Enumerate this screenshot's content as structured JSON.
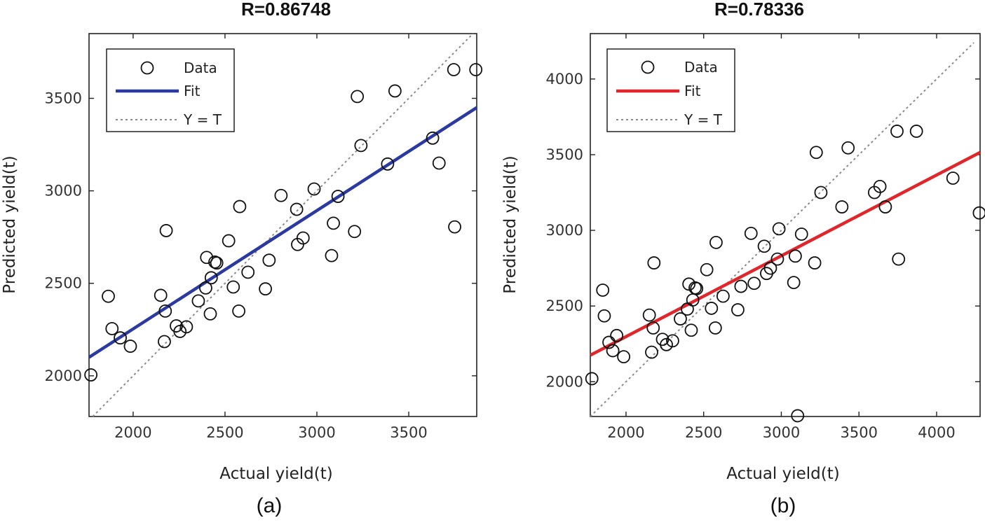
{
  "chart_data": [
    {
      "type": "scatter",
      "panel_label": "(a)",
      "title": "R=0.86748",
      "xlabel": "Actual yield(t)",
      "ylabel": "Predicted yield(t)",
      "xlim": [
        1760,
        3870
      ],
      "ylim": [
        1780,
        3850
      ],
      "xticks": [
        2000,
        2500,
        3000,
        3500
      ],
      "yticks": [
        2000,
        2500,
        3000,
        3500
      ],
      "xtick_labels": [
        "2000",
        "2500",
        "3000",
        "3500"
      ],
      "ytick_labels": [
        "2000",
        "2500",
        "3000",
        "3500"
      ],
      "legend": {
        "position": "top-left",
        "entries": [
          "Data",
          "Fit",
          "Y = T"
        ]
      },
      "fit_color": "#2b3aa0",
      "fit": {
        "x": [
          1760,
          3870
        ],
        "y": [
          2100,
          3450
        ]
      },
      "identity": {
        "x": [
          1780,
          3850
        ],
        "y": [
          1780,
          3850
        ]
      },
      "points": [
        {
          "x": 1770,
          "y": 2005
        },
        {
          "x": 1865,
          "y": 2430
        },
        {
          "x": 1885,
          "y": 2255
        },
        {
          "x": 1930,
          "y": 2205
        },
        {
          "x": 1985,
          "y": 2160
        },
        {
          "x": 2150,
          "y": 2435
        },
        {
          "x": 2170,
          "y": 2185
        },
        {
          "x": 2175,
          "y": 2350
        },
        {
          "x": 2180,
          "y": 2785
        },
        {
          "x": 2235,
          "y": 2270
        },
        {
          "x": 2255,
          "y": 2240
        },
        {
          "x": 2290,
          "y": 2265
        },
        {
          "x": 2355,
          "y": 2405
        },
        {
          "x": 2395,
          "y": 2475
        },
        {
          "x": 2400,
          "y": 2640
        },
        {
          "x": 2420,
          "y": 2335
        },
        {
          "x": 2425,
          "y": 2530
        },
        {
          "x": 2445,
          "y": 2615
        },
        {
          "x": 2455,
          "y": 2610
        },
        {
          "x": 2520,
          "y": 2730
        },
        {
          "x": 2545,
          "y": 2480
        },
        {
          "x": 2575,
          "y": 2350
        },
        {
          "x": 2580,
          "y": 2915
        },
        {
          "x": 2625,
          "y": 2560
        },
        {
          "x": 2720,
          "y": 2470
        },
        {
          "x": 2740,
          "y": 2625
        },
        {
          "x": 2805,
          "y": 2975
        },
        {
          "x": 2890,
          "y": 2900
        },
        {
          "x": 2895,
          "y": 2710
        },
        {
          "x": 2925,
          "y": 2745
        },
        {
          "x": 2985,
          "y": 3010
        },
        {
          "x": 3080,
          "y": 2650
        },
        {
          "x": 3090,
          "y": 2825
        },
        {
          "x": 3115,
          "y": 2970
        },
        {
          "x": 3205,
          "y": 2780
        },
        {
          "x": 3220,
          "y": 3510
        },
        {
          "x": 3240,
          "y": 3245
        },
        {
          "x": 3385,
          "y": 3145
        },
        {
          "x": 3425,
          "y": 3540
        },
        {
          "x": 3630,
          "y": 3285
        },
        {
          "x": 3665,
          "y": 3150
        },
        {
          "x": 3745,
          "y": 3655
        },
        {
          "x": 3750,
          "y": 2805
        },
        {
          "x": 3865,
          "y": 3655
        }
      ]
    },
    {
      "type": "scatter",
      "panel_label": "(b)",
      "title": "R=0.78336",
      "xlabel": "Actual yield(t)",
      "ylabel": "Predicted yield(t)",
      "xlim": [
        1770,
        4280
      ],
      "ylim": [
        1770,
        4300
      ],
      "xticks": [
        2000,
        2500,
        3000,
        3500,
        4000
      ],
      "yticks": [
        2000,
        2500,
        3000,
        3500,
        4000
      ],
      "xtick_labels": [
        "2000",
        "2500",
        "3000",
        "3500",
        "4000"
      ],
      "ytick_labels": [
        "2000",
        "2500",
        "3000",
        "3500",
        "4000"
      ],
      "legend": {
        "position": "top-left",
        "entries": [
          "Data",
          "Fit",
          "Y = T"
        ]
      },
      "fit_color": "#e0262a",
      "fit": {
        "x": [
          1770,
          4280
        ],
        "y": [
          2175,
          3515
        ]
      },
      "identity": {
        "x": [
          1770,
          4240
        ],
        "y": [
          1770,
          4240
        ]
      },
      "points": [
        {
          "x": 1780,
          "y": 2020
        },
        {
          "x": 1850,
          "y": 2605
        },
        {
          "x": 1860,
          "y": 2435
        },
        {
          "x": 1890,
          "y": 2260
        },
        {
          "x": 1915,
          "y": 2205
        },
        {
          "x": 1940,
          "y": 2305
        },
        {
          "x": 1985,
          "y": 2165
        },
        {
          "x": 2150,
          "y": 2440
        },
        {
          "x": 2165,
          "y": 2195
        },
        {
          "x": 2175,
          "y": 2355
        },
        {
          "x": 2180,
          "y": 2785
        },
        {
          "x": 2235,
          "y": 2280
        },
        {
          "x": 2260,
          "y": 2245
        },
        {
          "x": 2300,
          "y": 2270
        },
        {
          "x": 2350,
          "y": 2415
        },
        {
          "x": 2395,
          "y": 2480
        },
        {
          "x": 2405,
          "y": 2645
        },
        {
          "x": 2420,
          "y": 2340
        },
        {
          "x": 2430,
          "y": 2540
        },
        {
          "x": 2445,
          "y": 2620
        },
        {
          "x": 2455,
          "y": 2615
        },
        {
          "x": 2520,
          "y": 2740
        },
        {
          "x": 2550,
          "y": 2485
        },
        {
          "x": 2575,
          "y": 2355
        },
        {
          "x": 2580,
          "y": 2920
        },
        {
          "x": 2625,
          "y": 2565
        },
        {
          "x": 2720,
          "y": 2475
        },
        {
          "x": 2740,
          "y": 2630
        },
        {
          "x": 2805,
          "y": 2980
        },
        {
          "x": 2825,
          "y": 2650
        },
        {
          "x": 2890,
          "y": 2895
        },
        {
          "x": 2905,
          "y": 2715
        },
        {
          "x": 2930,
          "y": 2750
        },
        {
          "x": 2975,
          "y": 2810
        },
        {
          "x": 2985,
          "y": 3010
        },
        {
          "x": 3080,
          "y": 2655
        },
        {
          "x": 3090,
          "y": 2830
        },
        {
          "x": 3105,
          "y": 1775
        },
        {
          "x": 3130,
          "y": 2975
        },
        {
          "x": 3215,
          "y": 2785
        },
        {
          "x": 3225,
          "y": 3515
        },
        {
          "x": 3255,
          "y": 3250
        },
        {
          "x": 3390,
          "y": 3155
        },
        {
          "x": 3430,
          "y": 3545
        },
        {
          "x": 3600,
          "y": 3250
        },
        {
          "x": 3635,
          "y": 3290
        },
        {
          "x": 3670,
          "y": 3155
        },
        {
          "x": 3745,
          "y": 3655
        },
        {
          "x": 3755,
          "y": 2810
        },
        {
          "x": 3870,
          "y": 3655
        },
        {
          "x": 4105,
          "y": 3345
        },
        {
          "x": 4275,
          "y": 3115
        }
      ]
    }
  ]
}
